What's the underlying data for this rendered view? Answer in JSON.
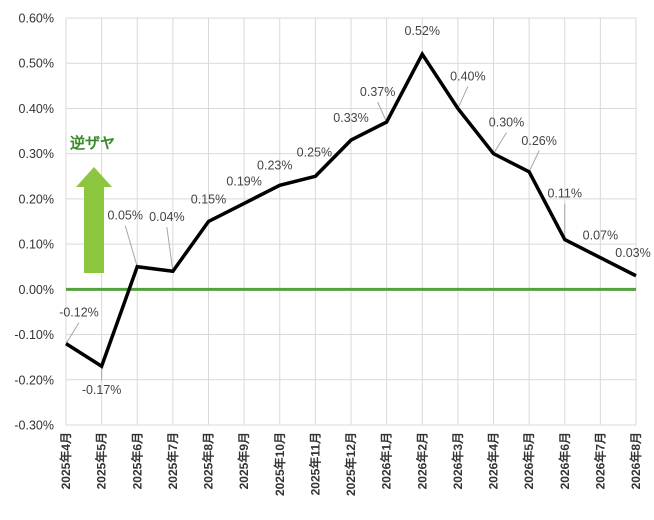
{
  "chart_data": {
    "type": "line",
    "categories": [
      "2025年4月",
      "2025年5月",
      "2025年6月",
      "2025年7月",
      "2025年8月",
      "2025年9月",
      "2025年10月",
      "2025年11月",
      "2025年12月",
      "2026年1月",
      "2026年2月",
      "2026年3月",
      "2026年4月",
      "2026年5月",
      "2026年6月",
      "2026年7月",
      "2026年8月"
    ],
    "series": [
      {
        "values": [
          -0.12,
          -0.17,
          0.05,
          0.04,
          0.15,
          0.19,
          0.23,
          0.25,
          0.33,
          0.37,
          0.52,
          0.4,
          0.3,
          0.26,
          0.11,
          0.07,
          0.03
        ]
      }
    ],
    "data_labels": [
      "-0.12%",
      "-0.17%",
      "0.05%",
      "0.04%",
      "0.15%",
      "0.19%",
      "0.23%",
      "0.25%",
      "0.33%",
      "0.37%",
      "0.52%",
      "0.40%",
      "0.30%",
      "0.26%",
      "0.11%",
      "0.07%",
      "0.03%"
    ],
    "y_ticks": [
      0.6,
      0.5,
      0.4,
      0.3,
      0.2,
      0.1,
      0.0,
      -0.1,
      -0.2,
      -0.3
    ],
    "y_tick_labels": [
      "0.60%",
      "0.50%",
      "0.40%",
      "0.30%",
      "0.20%",
      "0.10%",
      "0.00%",
      "-0.10%",
      "-0.20%",
      "-0.30%"
    ],
    "ylim": [
      -0.3,
      0.6
    ],
    "grid": true,
    "title": "",
    "xlabel": "",
    "ylabel": "",
    "annotation": {
      "text": "逆ザヤ",
      "color": "#3a8a2a",
      "arrow_color": "#8cc63f"
    },
    "zero_line_color": "#55a13b",
    "line_color": "#000000"
  }
}
